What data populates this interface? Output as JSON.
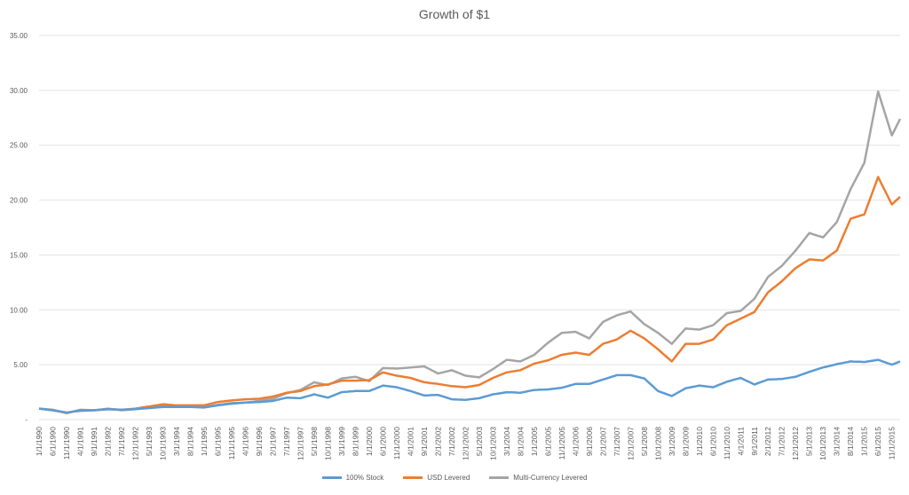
{
  "chart_data": {
    "type": "line",
    "title": "Growth of $1",
    "xlabel": "",
    "ylabel": "",
    "ylim": [
      0,
      35
    ],
    "grid": true,
    "legend_position": "bottom",
    "y_ticks": [
      "-",
      "5.00",
      "10.00",
      "15.00",
      "20.00",
      "25.00",
      "30.00",
      "35.00"
    ],
    "x_tick_labels": [
      "1/1/1990",
      "6/1/1990",
      "11/1/1990",
      "4/1/1991",
      "9/1/1991",
      "2/1/1992",
      "7/1/1992",
      "12/1/1992",
      "5/1/1993",
      "10/1/1993",
      "3/1/1994",
      "8/1/1994",
      "1/1/1995",
      "6/1/1995",
      "11/1/1995",
      "4/1/1996",
      "9/1/1996",
      "2/1/1997",
      "7/1/1997",
      "12/1/1997",
      "5/1/1998",
      "10/1/1998",
      "3/1/1999",
      "8/1/1999",
      "1/1/2000",
      "6/1/2000",
      "11/1/2000",
      "4/1/2001",
      "9/1/2001",
      "2/1/2002",
      "7/1/2002",
      "12/1/2002",
      "5/1/2003",
      "10/1/2003",
      "3/1/2004",
      "8/1/2004",
      "1/1/2005",
      "6/1/2005",
      "11/1/2005",
      "4/1/2006",
      "9/1/2006",
      "2/1/2007",
      "7/1/2007",
      "12/1/2007",
      "5/1/2008",
      "10/1/2008",
      "3/1/2009",
      "8/1/2009",
      "1/1/2010",
      "6/1/2010",
      "11/1/2010",
      "4/1/2011",
      "9/1/2011",
      "2/1/2012",
      "7/1/2012",
      "12/1/2012",
      "5/1/2013",
      "10/1/2013",
      "3/1/2014",
      "8/1/2014",
      "1/1/2015",
      "6/1/2015",
      "11/1/2015"
    ],
    "x_tick_start_index": 0,
    "x_tick_step": 5,
    "points_per_series": 312,
    "series": [
      {
        "name": "100% Stock",
        "color": "#5b9bd5",
        "anchors": [
          [
            0,
            1.0
          ],
          [
            5,
            0.85
          ],
          [
            10,
            0.8
          ],
          [
            15,
            0.7
          ],
          [
            25,
            0.85
          ],
          [
            35,
            0.9
          ],
          [
            45,
            0.9
          ],
          [
            55,
            1.0
          ],
          [
            65,
            1.15
          ],
          [
            75,
            1.2
          ],
          [
            85,
            1.2
          ],
          [
            95,
            1.15
          ],
          [
            105,
            1.25
          ],
          [
            115,
            1.5
          ],
          [
            125,
            1.6
          ],
          [
            135,
            1.7
          ],
          [
            145,
            1.95
          ],
          [
            150,
            2.05
          ],
          [
            155,
            2.0
          ],
          [
            160,
            2.3
          ],
          [
            165,
            2.0
          ],
          [
            170,
            2.5
          ],
          [
            175,
            2.55
          ],
          [
            180,
            2.65
          ],
          [
            185,
            2.6
          ],
          [
            190,
            3.1
          ],
          [
            195,
            3.05
          ],
          [
            200,
            2.9
          ],
          [
            205,
            2.5
          ],
          [
            210,
            2.3
          ],
          [
            215,
            2.05
          ],
          [
            220,
            2.25
          ],
          [
            225,
            1.85
          ],
          [
            230,
            1.75
          ],
          [
            235,
            1.7
          ],
          [
            240,
            2.05
          ],
          [
            245,
            2.35
          ],
          [
            250,
            2.5
          ],
          [
            255,
            2.45
          ],
          [
            260,
            2.65
          ],
          [
            265,
            2.8
          ],
          [
            270,
            3.05
          ],
          [
            275,
            3.25
          ],
          [
            280,
            3.35
          ],
          [
            285,
            3.7
          ],
          [
            290,
            4.0
          ],
          [
            295,
            4.15
          ],
          [
            300,
            3.9
          ],
          [
            303,
            3.6
          ],
          [
            306,
            2.4
          ],
          [
            309,
            2.1
          ],
          [
            312,
            2.7
          ]
        ],
        "note_x_scale": "anchors are [point index, value]"
      },
      {
        "name": "USD Levered",
        "color": "#ed7d31",
        "anchors": []
      },
      {
        "name": "Multi-Currency Levered",
        "color": "#a5a5a5",
        "anchors": []
      }
    ]
  }
}
